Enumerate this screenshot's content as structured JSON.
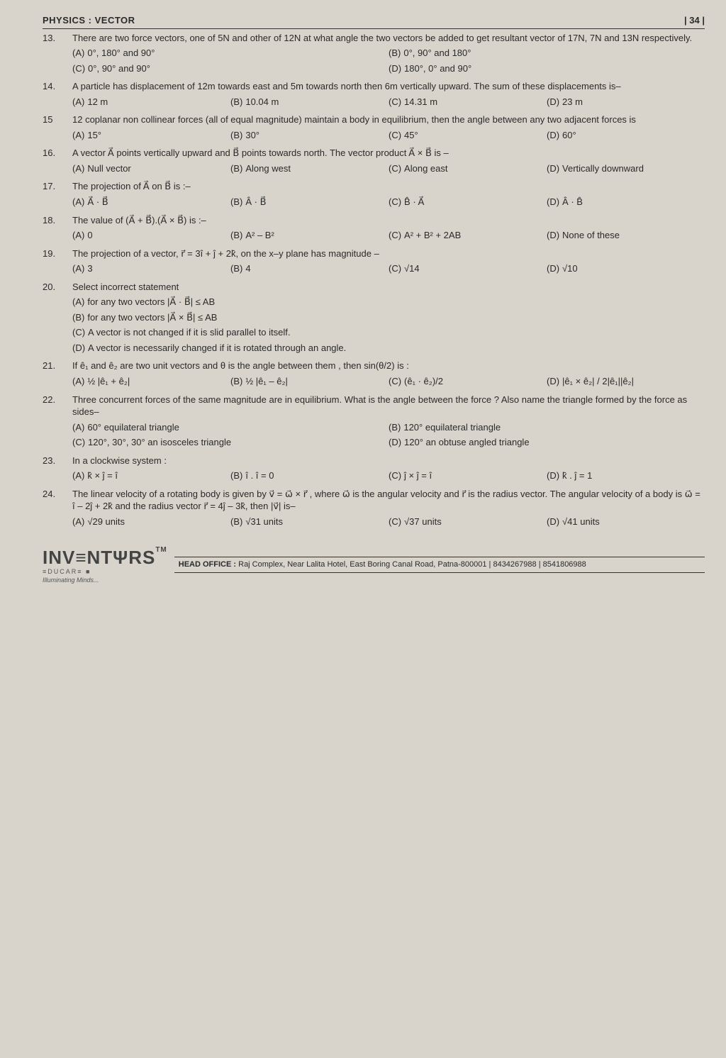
{
  "header": {
    "title": "PHYSICS : VECTOR",
    "page": "| 34 |"
  },
  "questions": [
    {
      "num": "13.",
      "text": "There are two force vectors, one of 5N and other of 12N at what angle the two vectors be added to get resultant vector of 17N, 7N and 13N respectively.",
      "cols": 2,
      "opts": [
        {
          "l": "(A)",
          "t": "0°, 180° and 90°"
        },
        {
          "l": "(B)",
          "t": "0°, 90° and 180°"
        },
        {
          "l": "(C)",
          "t": "0°, 90° and 90°"
        },
        {
          "l": "(D)",
          "t": "180°, 0° and 90°"
        }
      ]
    },
    {
      "num": "14.",
      "text": "A particle has displacement of 12m towards east and 5m towards north then 6m vertically upward. The sum of these displacements is–",
      "cols": 4,
      "opts": [
        {
          "l": "(A)",
          "t": "12 m"
        },
        {
          "l": "(B)",
          "t": "10.04 m"
        },
        {
          "l": "(C)",
          "t": "14.31 m"
        },
        {
          "l": "(D)",
          "t": "23 m"
        }
      ]
    },
    {
      "num": "15",
      "text": "12 coplanar non collinear forces (all of equal magnitude) maintain a body in equilibrium, then the angle between any two adjacent forces is",
      "cols": 4,
      "opts": [
        {
          "l": "(A)",
          "t": "15°"
        },
        {
          "l": "(B)",
          "t": "30°"
        },
        {
          "l": "(C)",
          "t": "45°"
        },
        {
          "l": "(D)",
          "t": "60°"
        }
      ]
    },
    {
      "num": "16.",
      "text": "A vector A⃗ points vertically upward and B⃗ points towards north. The vector product A⃗ × B⃗ is –",
      "cols": 4,
      "opts": [
        {
          "l": "(A)",
          "t": "Null vector"
        },
        {
          "l": "(B)",
          "t": "Along west"
        },
        {
          "l": "(C)",
          "t": "Along east"
        },
        {
          "l": "(D)",
          "t": "Vertically downward"
        }
      ]
    },
    {
      "num": "17.",
      "text": "The projection of A⃗ on B⃗ is :–",
      "cols": 4,
      "opts": [
        {
          "l": "(A)",
          "t": "A⃗ · B⃗"
        },
        {
          "l": "(B)",
          "t": "Â · B⃗"
        },
        {
          "l": "(C)",
          "t": "B̂ · A⃗"
        },
        {
          "l": "(D)",
          "t": "Â · B̂"
        }
      ]
    },
    {
      "num": "18.",
      "text": "The value of (A⃗ + B⃗).(A⃗ × B⃗) is :–",
      "cols": 4,
      "opts": [
        {
          "l": "(A)",
          "t": "0"
        },
        {
          "l": "(B)",
          "t": "A² – B²"
        },
        {
          "l": "(C)",
          "t": "A² + B² + 2AB"
        },
        {
          "l": "(D)",
          "t": "None of these"
        }
      ]
    },
    {
      "num": "19.",
      "text": "The projection of a vector, r⃗ = 3î + ĵ + 2k̂, on the x–y plane has magnitude –",
      "cols": 4,
      "opts": [
        {
          "l": "(A)",
          "t": "3"
        },
        {
          "l": "(B)",
          "t": "4"
        },
        {
          "l": "(C)",
          "t": "√14"
        },
        {
          "l": "(D)",
          "t": "√10"
        }
      ]
    },
    {
      "num": "20.",
      "text": "Select incorrect statement",
      "cols": 1,
      "opts": [
        {
          "l": "(A)",
          "t": "for any two vectors |A⃗ · B⃗| ≤ AB"
        },
        {
          "l": "(B)",
          "t": "for any two vectors |A⃗ × B⃗| ≤ AB"
        },
        {
          "l": "(C)",
          "t": "A vector is not changed if it is slid parallel to itself."
        },
        {
          "l": "(D)",
          "t": "A vector is necessarily changed if it is rotated through an angle."
        }
      ]
    },
    {
      "num": "21.",
      "text": "If ê₁ and ê₂ are two unit vectors and θ is the angle between them , then sin(θ/2) is :",
      "cols": 4,
      "opts": [
        {
          "l": "(A)",
          "t": "½ |ê₁ + ê₂|"
        },
        {
          "l": "(B)",
          "t": "½ |ê₁ – ê₂|"
        },
        {
          "l": "(C)",
          "t": "(ê₁ · ê₂)/2"
        },
        {
          "l": "(D)",
          "t": "|ê₁ × ê₂| / 2|ê₁||ê₂|"
        }
      ]
    },
    {
      "num": "22.",
      "text": "Three concurrent forces of the same magnitude are in equilibrium. What is the angle between the force ? Also name the triangle formed by the force as sides–",
      "cols": 2,
      "opts": [
        {
          "l": "(A)",
          "t": "60° equilateral triangle"
        },
        {
          "l": "(B)",
          "t": "120° equilateral triangle"
        },
        {
          "l": "(C)",
          "t": "120°, 30°, 30° an isosceles triangle"
        },
        {
          "l": "(D)",
          "t": "120° an obtuse angled triangle"
        }
      ]
    },
    {
      "num": "23.",
      "text": "In a clockwise system :",
      "cols": 4,
      "opts": [
        {
          "l": "(A)",
          "t": "k̂ × ĵ = î"
        },
        {
          "l": "(B)",
          "t": "î . î = 0"
        },
        {
          "l": "(C)",
          "t": "ĵ × ĵ = î"
        },
        {
          "l": "(D)",
          "t": "k̂ . ĵ = 1"
        }
      ]
    },
    {
      "num": "24.",
      "text": "The linear velocity of a rotating body is given by v⃗ = ω⃗ × r⃗ , where ω⃗ is the angular velocity and r⃗ is the radius vector. The angular velocity of a body is ω⃗ = î – 2ĵ + 2k̂ and the radius vector r⃗ = 4ĵ – 3k̂, then |v⃗| is–",
      "cols": 4,
      "opts": [
        {
          "l": "(A)",
          "t": "√29 units"
        },
        {
          "l": "(B)",
          "t": "√31 units"
        },
        {
          "l": "(C)",
          "t": "√37 units"
        },
        {
          "l": "(D)",
          "t": "√41 units"
        }
      ]
    }
  ],
  "footer": {
    "logo": "INV≡NTΨRS",
    "tm": "TM",
    "sub": "≡DUCAR≡ ■",
    "tag": "Illuminating Minds...",
    "office_label": "HEAD OFFICE :",
    "office_text": "Raj Complex, Near Lalita Hotel, East Boring Canal Road, Patna-800001 | 8434267988 | 8541806988"
  }
}
